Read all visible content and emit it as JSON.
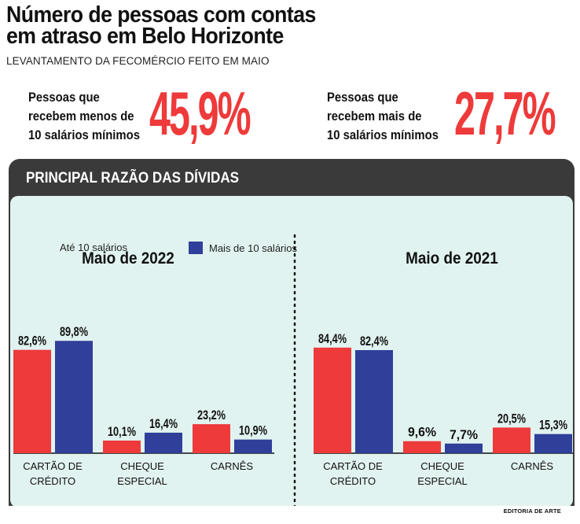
{
  "header": {
    "title_line1": "Número de pessoas com contas",
    "title_line2": "em atraso em Belo Horizonte",
    "subtitle": "LEVANTAMENTO DA FECOMÉRCIO FEITO EM MAIO"
  },
  "stats": {
    "left": {
      "label_lines": [
        "Pessoas que",
        "recebem menos de",
        "10 salários mínimos"
      ],
      "value": "45,9%"
    },
    "right": {
      "label_lines": [
        "Pessoas que",
        "recebem mais de",
        "10 salários mínimos"
      ],
      "value": "27,7%"
    }
  },
  "panel": {
    "title": "PRINCIPAL RAZÃO DAS DÍVIDAS"
  },
  "legend": {
    "series_a": "Até 10 salários",
    "series_b": "Mais de 10 salários"
  },
  "colors": {
    "red": "#ee3a3a",
    "blue": "#2f3f9a",
    "panel_dark": "#3a3a3a",
    "panel_bg": "#e1f3f0"
  },
  "credit": "EDITORIA DE ARTE",
  "chart_data": [
    {
      "type": "bar",
      "title": "Maio de 2022",
      "categories": [
        [
          "CARTÃO DE",
          "CRÉDITO"
        ],
        [
          "CHEQUE",
          "ESPECIAL"
        ],
        [
          "CARNÊS"
        ]
      ],
      "series": [
        {
          "name": "Até 10 salários",
          "values": [
            82.6,
            10.1,
            23.2
          ],
          "labels": [
            "82,6%",
            "10,1%",
            "23,2%"
          ],
          "color": "#ee3a3a"
        },
        {
          "name": "Mais de 10 salários",
          "values": [
            89.8,
            16.4,
            10.9
          ],
          "labels": [
            "89,8%",
            "16,4%",
            "10,9%"
          ],
          "color": "#2f3f9a"
        }
      ]
    },
    {
      "type": "bar",
      "title": "Maio de 2021",
      "categories": [
        [
          "CARTÃO DE",
          "CRÉDITO"
        ],
        [
          "CHEQUE",
          "ESPECIAL"
        ],
        [
          "CARNÊS"
        ]
      ],
      "series": [
        {
          "name": "Até 10 salários",
          "values": [
            84.4,
            9.6,
            20.5
          ],
          "labels": [
            "84,4%",
            "9,6%",
            "20,5%"
          ],
          "color": "#ee3a3a"
        },
        {
          "name": "Mais de 10 salários",
          "values": [
            82.4,
            7.7,
            15.3
          ],
          "labels": [
            "82,4%",
            "7,7%",
            "15,3%"
          ],
          "color": "#2f3f9a"
        }
      ]
    }
  ]
}
